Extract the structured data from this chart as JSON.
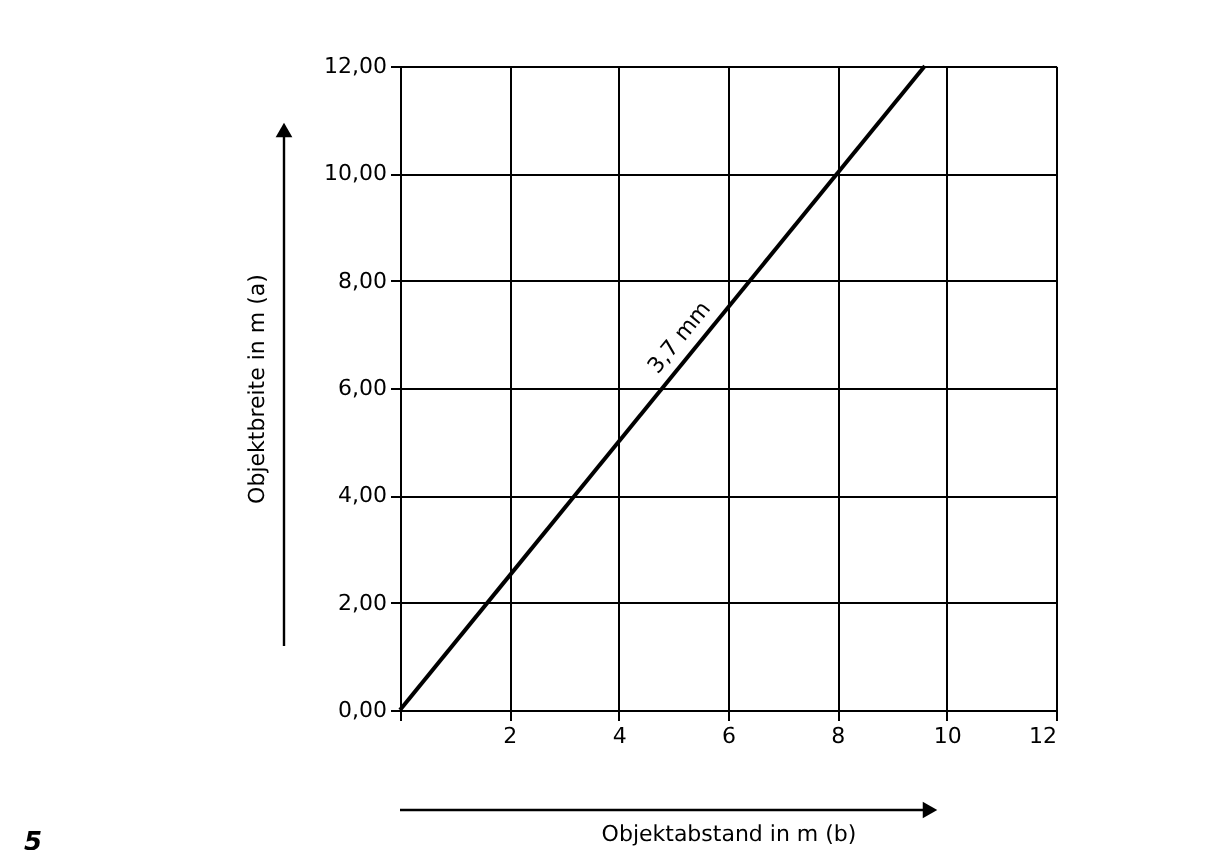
{
  "chart_data": {
    "type": "line",
    "xlabel": "Objektabstand in m (b)",
    "ylabel": "Objektbreite in m (a)",
    "series": [
      {
        "name": "3,7 mm",
        "color": "#000000",
        "x": [
          0,
          9.6
        ],
        "values": [
          0,
          12
        ]
      }
    ],
    "xlim": [
      0,
      12
    ],
    "xticks": [
      {
        "value": 0,
        "label": null
      },
      2,
      4,
      6,
      8,
      10,
      12
    ],
    "ylim": [
      0,
      12
    ],
    "yticks": [
      {
        "value": 0,
        "label": "0,00"
      },
      {
        "value": 2,
        "label": "2,00"
      },
      {
        "value": 4,
        "label": "4,00"
      },
      {
        "value": 6,
        "label": "6,00"
      },
      {
        "value": 8,
        "label": "8,00"
      },
      {
        "value": 10,
        "label": "10,00"
      },
      {
        "value": 12,
        "label": "12,00"
      }
    ],
    "grid": true,
    "legend": false,
    "marker": "none",
    "line_style": "solid",
    "annotations": [
      "5"
    ]
  }
}
